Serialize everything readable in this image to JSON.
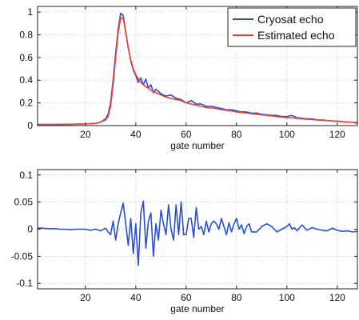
{
  "chart_data": [
    {
      "type": "line",
      "xlabel": "gate number",
      "xlim": [
        1,
        128
      ],
      "ylim": [
        0,
        1.05
      ],
      "xticks": [
        20,
        40,
        60,
        80,
        100,
        120
      ],
      "yticks": [
        0,
        0.2,
        0.4,
        0.6,
        0.8,
        1
      ],
      "ytick_labels": [
        "0",
        "0.2",
        "0.4",
        "0.6",
        "0.8",
        "1"
      ],
      "grid": true,
      "legend_position": "top-right",
      "series": [
        {
          "name": "Cryosat echo",
          "color": "#2a4fd6",
          "x": [
            1,
            5,
            10,
            15,
            20,
            24,
            26,
            28,
            29,
            30,
            31,
            32,
            33,
            34,
            35,
            36,
            37,
            38,
            39,
            40,
            41,
            42,
            43,
            44,
            45,
            46,
            47,
            48,
            50,
            52,
            54,
            56,
            58,
            60,
            62,
            64,
            66,
            68,
            70,
            72,
            74,
            76,
            78,
            80,
            82,
            84,
            86,
            88,
            90,
            92,
            94,
            96,
            98,
            100,
            102,
            104,
            106,
            108,
            110,
            112,
            114,
            116,
            118,
            120,
            122,
            124,
            126,
            128
          ],
          "values": [
            0.01,
            0.01,
            0.01,
            0.012,
            0.015,
            0.02,
            0.03,
            0.06,
            0.1,
            0.2,
            0.4,
            0.64,
            0.85,
            0.99,
            0.97,
            0.82,
            0.69,
            0.57,
            0.49,
            0.44,
            0.38,
            0.42,
            0.36,
            0.41,
            0.33,
            0.36,
            0.29,
            0.32,
            0.28,
            0.26,
            0.27,
            0.24,
            0.23,
            0.2,
            0.22,
            0.19,
            0.19,
            0.17,
            0.17,
            0.16,
            0.15,
            0.14,
            0.14,
            0.13,
            0.12,
            0.12,
            0.11,
            0.11,
            0.1,
            0.095,
            0.09,
            0.09,
            0.08,
            0.08,
            0.09,
            0.07,
            0.065,
            0.06,
            0.06,
            0.05,
            0.05,
            0.045,
            0.04,
            0.04,
            0.035,
            0.03,
            0.03,
            0.02
          ]
        },
        {
          "name": "Estimated echo",
          "color": "#f0432a",
          "x": [
            1,
            5,
            10,
            15,
            20,
            24,
            26,
            28,
            29,
            30,
            31,
            32,
            33,
            34,
            35,
            36,
            37,
            38,
            39,
            40,
            41,
            42,
            43,
            44,
            45,
            46,
            47,
            48,
            50,
            52,
            54,
            56,
            58,
            60,
            62,
            64,
            66,
            68,
            70,
            72,
            74,
            76,
            78,
            80,
            82,
            84,
            86,
            88,
            90,
            92,
            94,
            96,
            98,
            100,
            102,
            104,
            106,
            108,
            110,
            112,
            114,
            116,
            118,
            120,
            122,
            124,
            126,
            128
          ],
          "values": [
            0.01,
            0.01,
            0.01,
            0.012,
            0.015,
            0.02,
            0.03,
            0.05,
            0.08,
            0.17,
            0.36,
            0.6,
            0.82,
            0.95,
            0.94,
            0.83,
            0.68,
            0.58,
            0.5,
            0.45,
            0.41,
            0.38,
            0.36,
            0.34,
            0.33,
            0.31,
            0.3,
            0.29,
            0.27,
            0.25,
            0.24,
            0.23,
            0.22,
            0.2,
            0.19,
            0.18,
            0.17,
            0.16,
            0.155,
            0.15,
            0.14,
            0.135,
            0.13,
            0.12,
            0.115,
            0.11,
            0.105,
            0.1,
            0.095,
            0.09,
            0.085,
            0.08,
            0.075,
            0.07,
            0.068,
            0.065,
            0.06,
            0.056,
            0.053,
            0.05,
            0.047,
            0.044,
            0.04,
            0.038,
            0.035,
            0.032,
            0.03,
            0.028
          ]
        }
      ]
    },
    {
      "type": "line",
      "xlabel": "gate number",
      "xlim": [
        1,
        128
      ],
      "ylim": [
        -0.11,
        0.11
      ],
      "xticks": [
        20,
        40,
        60,
        80,
        100,
        120
      ],
      "yticks": [
        -0.1,
        -0.05,
        0,
        0.05,
        0.1
      ],
      "ytick_labels": [
        "-0.1",
        "-0.05",
        "0",
        "0.05",
        "0.1"
      ],
      "grid": true,
      "series": [
        {
          "color": "#2a4fd6",
          "x": [
            1,
            3,
            5,
            8,
            10,
            12,
            14,
            16,
            18,
            20,
            22,
            24,
            26,
            28,
            29,
            30,
            31,
            32,
            33,
            34,
            35,
            36,
            37,
            38,
            39,
            40,
            41,
            42,
            43,
            44,
            45,
            46,
            47,
            48,
            49,
            50,
            51,
            52,
            53,
            54,
            55,
            56,
            57,
            58,
            59,
            60,
            61,
            62,
            63,
            64,
            65,
            66,
            67,
            68,
            69,
            70,
            71,
            72,
            73,
            74,
            75,
            76,
            77,
            78,
            79,
            80,
            81,
            82,
            83,
            84,
            85,
            86,
            88,
            90,
            92,
            94,
            96,
            98,
            100,
            101,
            102,
            103,
            104,
            106,
            108,
            110,
            112,
            114,
            116,
            118,
            120,
            122,
            124,
            126,
            128
          ],
          "values": [
            0.002,
            0.002,
            0.001,
            0.001,
            0,
            0,
            -0.001,
            0,
            0,
            0,
            -0.002,
            0,
            -0.003,
            0.002,
            -0.005,
            -0.01,
            0.015,
            -0.02,
            0.01,
            0.03,
            0.048,
            0.01,
            -0.03,
            0.02,
            -0.045,
            0.01,
            -0.067,
            0.03,
            0.052,
            -0.035,
            0.015,
            0.03,
            -0.05,
            0.01,
            -0.02,
            0.035,
            0.01,
            -0.01,
            0.045,
            0,
            -0.02,
            0.045,
            -0.01,
            0.05,
            -0.01,
            -0.01,
            0.02,
            0.02,
            -0.015,
            0.04,
            0,
            0.005,
            -0.01,
            0.015,
            -0.005,
            0.01,
            0.015,
            0.01,
            0,
            0.02,
            0.005,
            -0.01,
            0.012,
            -0.005,
            0.01,
            0.02,
            0,
            0.008,
            -0.008,
            0.005,
            0.01,
            -0.005,
            -0.005,
            0.005,
            0.01,
            0.005,
            -0.005,
            0,
            0.005,
            0.01,
            0,
            0.003,
            -0.003,
            0.008,
            -0.002,
            0.003,
            0,
            -0.002,
            -0.003,
            0.002,
            -0.002,
            -0.004,
            -0.003,
            -0.005,
            -0.004
          ]
        }
      ]
    }
  ]
}
